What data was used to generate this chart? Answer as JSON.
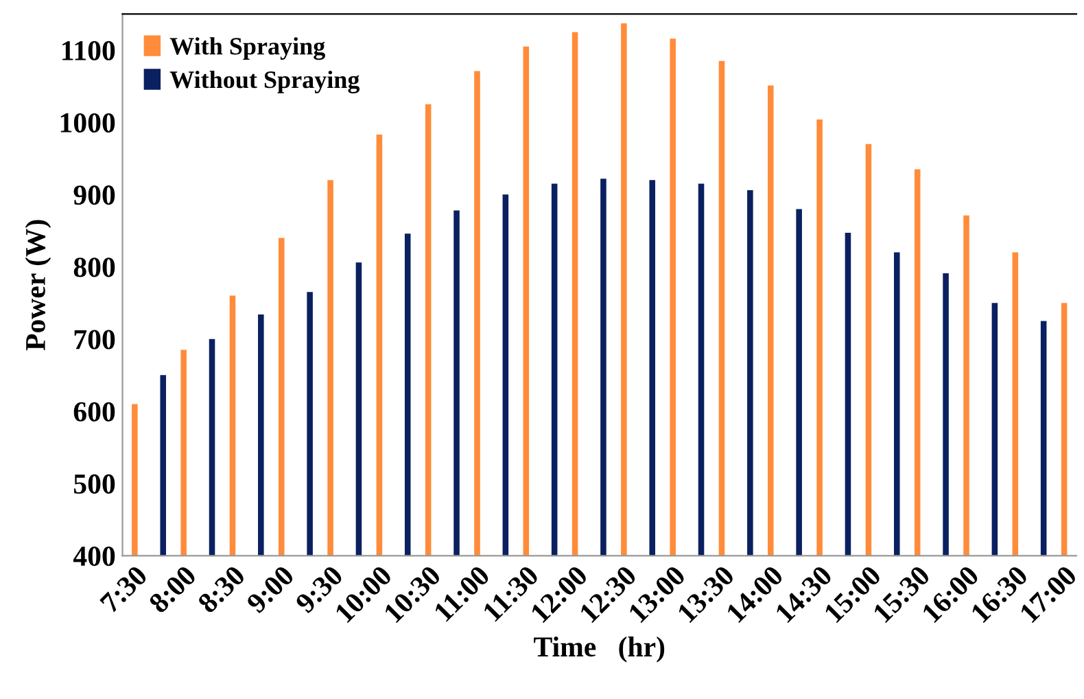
{
  "chart_data": {
    "type": "bar",
    "xlabel": "Time   (hr)",
    "ylabel": "Power (W)",
    "categories": [
      "7:30",
      "8:00",
      "8:30",
      "9:00",
      "9:30",
      "10:00",
      "10:30",
      "11:00",
      "11:30",
      "12:00",
      "12:30",
      "13:00",
      "13:30",
      "14:00",
      "14:30",
      "15:00",
      "15:30",
      "16:00",
      "16:30",
      "17:00"
    ],
    "series": [
      {
        "name": "With Spraying",
        "color": "#ff8c3a",
        "values": [
          610,
          685,
          760,
          840,
          920,
          983,
          1025,
          1071,
          1105,
          1125,
          1137,
          1116,
          1085,
          1051,
          1004,
          970,
          935,
          871,
          820,
          750
        ]
      },
      {
        "name": "Without Spraying",
        "color": "#0a2060",
        "values": [
          null,
          650,
          700,
          734,
          765,
          806,
          846,
          878,
          900,
          915,
          922,
          920,
          915,
          906,
          880,
          847,
          820,
          791,
          750,
          725
        ]
      }
    ],
    "ylim": [
      400,
      1150
    ],
    "yticks": [
      400,
      500,
      600,
      700,
      800,
      900,
      1000,
      1100
    ],
    "grid": false,
    "legend": "top left"
  }
}
